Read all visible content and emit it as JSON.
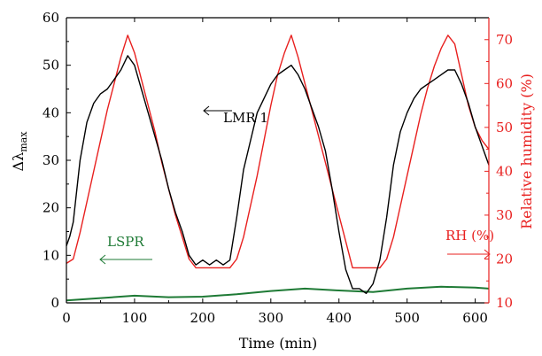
{
  "chart_data": {
    "type": "line",
    "xlabel": "Time (min)",
    "ylabel_left": "Δλ",
    "ylabel_left_sub": "max",
    "ylabel_right": "Relative humidity (%)",
    "xlim": [
      0,
      620
    ],
    "ylim_left": [
      0,
      60
    ],
    "ylim_right": [
      10,
      75
    ],
    "x_ticks": [
      0,
      100,
      200,
      300,
      400,
      500,
      600
    ],
    "y_left_ticks": [
      0,
      10,
      20,
      30,
      40,
      50,
      60
    ],
    "y_right_ticks": [
      10,
      20,
      30,
      40,
      50,
      60,
      70
    ],
    "grid": false,
    "legend": "none",
    "colors": {
      "lmr": "#000000",
      "rh": "#e8201f",
      "lspr": "#1e7a35"
    },
    "annotations": {
      "lmr": "LMR 1",
      "lspr": "LSPR",
      "rh": "RH (%)"
    },
    "series": [
      {
        "name": "LMR 1",
        "axis": "left",
        "color": "#000000",
        "x": [
          0,
          5,
          10,
          20,
          30,
          40,
          50,
          60,
          70,
          80,
          90,
          100,
          110,
          120,
          130,
          140,
          150,
          160,
          170,
          180,
          190,
          200,
          210,
          220,
          230,
          240,
          250,
          260,
          270,
          280,
          290,
          300,
          310,
          320,
          330,
          340,
          350,
          360,
          370,
          380,
          390,
          400,
          410,
          420,
          430,
          440,
          450,
          460,
          470,
          480,
          490,
          500,
          510,
          520,
          530,
          540,
          550,
          560,
          570,
          580,
          590,
          600,
          610,
          620
        ],
        "y": [
          12,
          14,
          17,
          30,
          38,
          42,
          44,
          45,
          47,
          49,
          52,
          50,
          45,
          40,
          35,
          30,
          24,
          19,
          15,
          10,
          8,
          9,
          8,
          9,
          8,
          9,
          18,
          28,
          34,
          40,
          43,
          46,
          48,
          49,
          50,
          48,
          45,
          41,
          37,
          32,
          24,
          15,
          7,
          3,
          3,
          2,
          4,
          9,
          18,
          29,
          36,
          40,
          43,
          45,
          46,
          47,
          48,
          49,
          49,
          46,
          42,
          37,
          33,
          29
        ]
      },
      {
        "name": "RH (%)",
        "axis": "right",
        "color": "#e8201f",
        "x": [
          0,
          10,
          20,
          30,
          40,
          50,
          60,
          70,
          80,
          90,
          100,
          110,
          120,
          130,
          140,
          150,
          160,
          170,
          180,
          190,
          200,
          210,
          220,
          230,
          240,
          250,
          260,
          270,
          280,
          290,
          300,
          310,
          320,
          330,
          340,
          350,
          360,
          370,
          380,
          390,
          400,
          410,
          420,
          430,
          440,
          450,
          460,
          470,
          480,
          490,
          500,
          510,
          520,
          530,
          540,
          550,
          560,
          570,
          580,
          590,
          600,
          610,
          620
        ],
        "y": [
          19,
          20,
          26,
          33,
          40,
          47,
          54,
          60,
          66,
          71,
          67,
          61,
          55,
          49,
          42,
          36,
          30,
          25,
          20,
          18,
          18,
          18,
          18,
          18,
          18,
          20,
          25,
          32,
          39,
          47,
          55,
          62,
          67,
          71,
          66,
          60,
          54,
          48,
          42,
          36,
          30,
          24,
          18,
          18,
          18,
          18,
          18,
          20,
          25,
          32,
          39,
          46,
          53,
          59,
          64,
          68,
          71,
          69,
          62,
          55,
          50,
          47,
          45
        ]
      },
      {
        "name": "LSPR",
        "axis": "left",
        "color": "#1e7a35",
        "x": [
          0,
          50,
          100,
          150,
          200,
          250,
          300,
          350,
          400,
          450,
          500,
          550,
          600,
          620
        ],
        "y": [
          0.5,
          1,
          1.5,
          1.2,
          1.3,
          1.8,
          2.5,
          3,
          2.6,
          2.3,
          3,
          3.4,
          3.2,
          3
        ]
      }
    ]
  }
}
